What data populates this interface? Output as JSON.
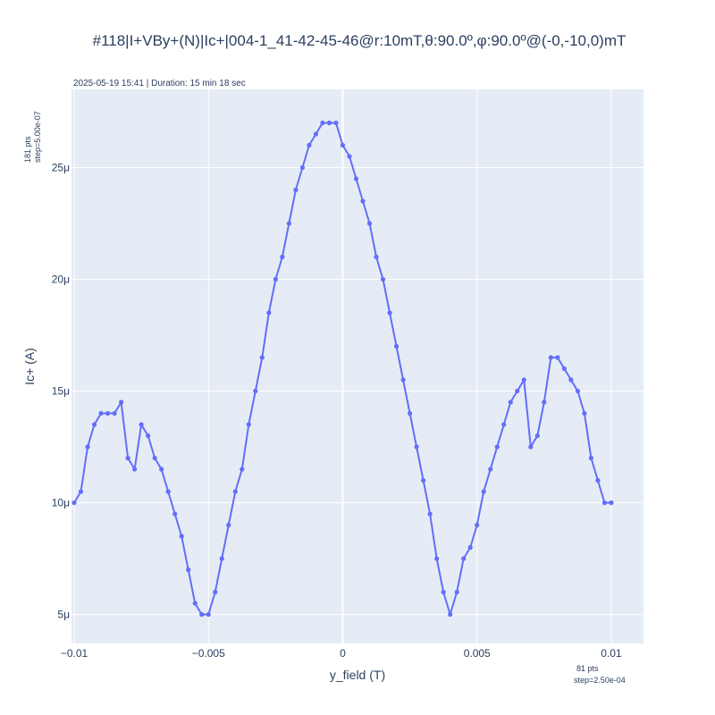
{
  "chart_data": {
    "type": "line",
    "title": "#118|I+VBy+(N)|Ic+|004-1_41-42-45-46@r:10mT,θ:90.0º,φ:90.0º@(-0,-10,0)mT",
    "subtitle": "2025-05-19 15:41 | Duration: 15 min 18 sec",
    "xlabel": "y_field (T)",
    "ylabel": "Ic+ (A)",
    "x_note": [
      "81 pts",
      "step=2.50e-04"
    ],
    "y_note": [
      "181 pts",
      "step=5.00e-07"
    ],
    "xlim": [
      -0.0101,
      0.0112
    ],
    "ylim": [
      3.7e-06,
      2.85e-05
    ],
    "x_ticks": [
      {
        "value": -0.01,
        "label": "−0.01"
      },
      {
        "value": -0.005,
        "label": "−0.005"
      },
      {
        "value": 0,
        "label": "0"
      },
      {
        "value": 0.005,
        "label": "0.005"
      },
      {
        "value": 0.01,
        "label": "0.01"
      }
    ],
    "y_ticks": [
      {
        "value": 5e-06,
        "label": "5μ"
      },
      {
        "value": 1e-05,
        "label": "10μ"
      },
      {
        "value": 1.5e-05,
        "label": "15μ"
      },
      {
        "value": 2e-05,
        "label": "20μ"
      },
      {
        "value": 2.5e-05,
        "label": "25μ"
      }
    ],
    "grid": true,
    "series": [
      {
        "color": "#636efa",
        "x": [
          -0.01,
          -0.00975,
          -0.0095,
          -0.00925,
          -0.009,
          -0.00875,
          -0.0085,
          -0.00825,
          -0.008,
          -0.00775,
          -0.0075,
          -0.00725,
          -0.007,
          -0.00675,
          -0.0065,
          -0.00625,
          -0.006,
          -0.00575,
          -0.0055,
          -0.00525,
          -0.005,
          -0.00475,
          -0.0045,
          -0.00425,
          -0.004,
          -0.00375,
          -0.0035,
          -0.00325,
          -0.003,
          -0.00275,
          -0.0025,
          -0.00225,
          -0.002,
          -0.00175,
          -0.0015,
          -0.00125,
          -0.001,
          -0.00075,
          -0.0005,
          -0.00025,
          0,
          0.00025,
          0.0005,
          0.00075,
          0.001,
          0.00125,
          0.0015,
          0.00175,
          0.002,
          0.00225,
          0.0025,
          0.00275,
          0.003,
          0.00325,
          0.0035,
          0.00375,
          0.004,
          0.00425,
          0.0045,
          0.00475,
          0.005,
          0.00525,
          0.0055,
          0.00575,
          0.006,
          0.00625,
          0.0065,
          0.00675,
          0.007,
          0.00725,
          0.0075,
          0.00775,
          0.008,
          0.00825,
          0.0085,
          0.00875,
          0.009,
          0.00925,
          0.0095,
          0.00975,
          0.01
        ],
        "y": [
          1e-05,
          1.05e-05,
          1.25e-05,
          1.35e-05,
          1.4e-05,
          1.4e-05,
          1.4e-05,
          1.45e-05,
          1.2e-05,
          1.15e-05,
          1.35e-05,
          1.3e-05,
          1.2e-05,
          1.15e-05,
          1.05e-05,
          9.5e-06,
          8.5e-06,
          7e-06,
          5.5e-06,
          5e-06,
          5e-06,
          6e-06,
          7.5e-06,
          9e-06,
          1.05e-05,
          1.15e-05,
          1.35e-05,
          1.5e-05,
          1.65e-05,
          1.85e-05,
          2e-05,
          2.1e-05,
          2.25e-05,
          2.4e-05,
          2.5e-05,
          2.6e-05,
          2.65e-05,
          2.7e-05,
          2.7e-05,
          2.7e-05,
          2.6e-05,
          2.55e-05,
          2.45e-05,
          2.35e-05,
          2.25e-05,
          2.1e-05,
          2e-05,
          1.85e-05,
          1.7e-05,
          1.55e-05,
          1.4e-05,
          1.25e-05,
          1.1e-05,
          9.5e-06,
          7.5e-06,
          6e-06,
          5e-06,
          6e-06,
          7.5e-06,
          8e-06,
          9e-06,
          1.05e-05,
          1.15e-05,
          1.25e-05,
          1.35e-05,
          1.45e-05,
          1.5e-05,
          1.55e-05,
          1.25e-05,
          1.3e-05,
          1.45e-05,
          1.65e-05,
          1.65e-05,
          1.6e-05,
          1.55e-05,
          1.5e-05,
          1.4e-05,
          1.2e-05,
          1.1e-05,
          1e-05,
          1e-05
        ]
      }
    ]
  }
}
